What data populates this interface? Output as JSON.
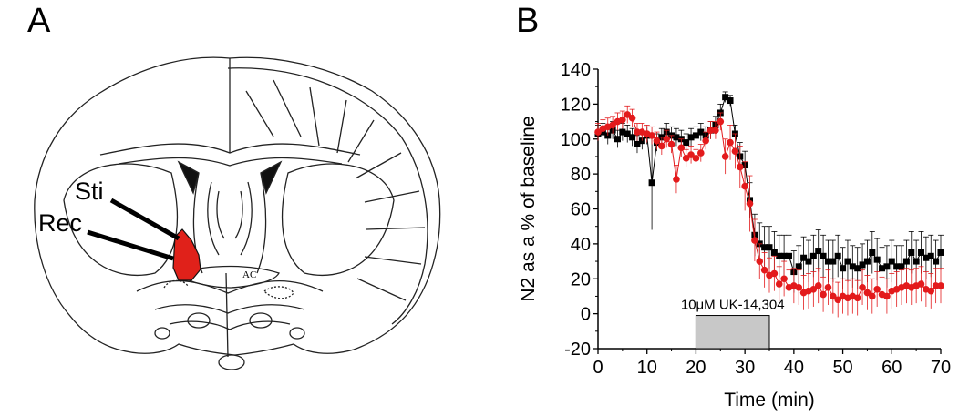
{
  "panels": {
    "a": "A",
    "b": "B"
  },
  "brain": {
    "labels": {
      "sti": "Sti",
      "rec": "Rec",
      "ac": "AC"
    },
    "region_color": "#e0211a"
  },
  "chart_data": {
    "type": "scatter",
    "xlabel": "Time (min)",
    "ylabel": "N2 as a % of baseline",
    "xlim": [
      0,
      70
    ],
    "ylim": [
      -20,
      140
    ],
    "xticks": [
      0,
      10,
      20,
      30,
      40,
      50,
      60,
      70
    ],
    "yticks": [
      -20,
      0,
      20,
      40,
      60,
      80,
      100,
      120,
      140
    ],
    "annotation": {
      "text": "10μM UK-14,304",
      "x_start": 20,
      "x_end": 35,
      "color": "#c8c8c8"
    },
    "series": [
      {
        "color": "#000000",
        "marker": "square",
        "x": [
          0,
          1,
          2,
          3,
          4,
          5,
          6,
          7,
          8,
          9,
          10,
          11,
          12,
          13,
          14,
          15,
          16,
          17,
          18,
          19,
          20,
          21,
          22,
          23,
          24,
          25,
          26,
          27,
          28,
          29,
          30,
          31,
          32,
          33,
          34,
          35,
          36,
          37,
          38,
          39,
          40,
          41,
          42,
          43,
          44,
          45,
          46,
          47,
          48,
          49,
          50,
          51,
          52,
          53,
          54,
          55,
          56,
          57,
          58,
          59,
          60,
          61,
          62,
          63,
          64,
          65,
          66,
          67,
          68,
          69,
          70
        ],
        "y": [
          103,
          104,
          102,
          105,
          100,
          104,
          103,
          101,
          97,
          99,
          102,
          75,
          98,
          101,
          104,
          102,
          101,
          100,
          98,
          101,
          102,
          104,
          102,
          105,
          108,
          115,
          124,
          122,
          103,
          90,
          85,
          65,
          45,
          40,
          38,
          38,
          35,
          33,
          33,
          33,
          24,
          27,
          32,
          30,
          33,
          36,
          33,
          30,
          30,
          33,
          26,
          30,
          27,
          26,
          28,
          30,
          35,
          31,
          26,
          27,
          30,
          27,
          27,
          30,
          35,
          30,
          35,
          32,
          33,
          30,
          35
        ],
        "err": [
          5,
          5,
          5,
          5,
          5,
          5,
          5,
          5,
          5,
          5,
          5,
          27,
          5,
          5,
          5,
          5,
          5,
          5,
          5,
          5,
          5,
          5,
          5,
          5,
          5,
          5,
          3,
          3,
          5,
          8,
          8,
          10,
          12,
          12,
          12,
          12,
          12,
          12,
          12,
          12,
          12,
          12,
          12,
          12,
          12,
          12,
          12,
          12,
          12,
          12,
          12,
          12,
          12,
          12,
          12,
          12,
          12,
          12,
          12,
          12,
          12,
          12,
          12,
          12,
          12,
          12,
          12,
          12,
          12,
          12,
          10
        ]
      },
      {
        "color": "#e31a1c",
        "marker": "circle",
        "x": [
          0,
          1,
          2,
          3,
          4,
          5,
          6,
          7,
          8,
          9,
          10,
          11,
          12,
          13,
          14,
          15,
          16,
          17,
          18,
          19,
          20,
          21,
          22,
          23,
          24,
          25,
          26,
          27,
          28,
          29,
          30,
          31,
          32,
          33,
          34,
          35,
          36,
          37,
          38,
          39,
          40,
          41,
          42,
          43,
          44,
          45,
          46,
          47,
          48,
          49,
          50,
          51,
          52,
          53,
          54,
          55,
          56,
          57,
          58,
          59,
          60,
          61,
          62,
          63,
          64,
          65,
          66,
          67,
          68,
          69,
          70
        ],
        "y": [
          104,
          106,
          107,
          108,
          110,
          111,
          114,
          112,
          104,
          104,
          103,
          102,
          99,
          96,
          100,
          97,
          77,
          95,
          89,
          91,
          89,
          92,
          99,
          105,
          105,
          110,
          90,
          98,
          93,
          84,
          73,
          63,
          42,
          30,
          25,
          22,
          23,
          17,
          20,
          15,
          16,
          15,
          12,
          13,
          14,
          16,
          11,
          15,
          10,
          8,
          10,
          9,
          10,
          9,
          15,
          12,
          10,
          14,
          11,
          10,
          13,
          14,
          15,
          16,
          15,
          16,
          17,
          14,
          13,
          16,
          16
        ],
        "err": [
          5,
          5,
          5,
          5,
          5,
          5,
          5,
          5,
          5,
          5,
          5,
          5,
          5,
          5,
          5,
          5,
          8,
          5,
          5,
          5,
          5,
          5,
          5,
          5,
          5,
          5,
          10,
          10,
          10,
          12,
          14,
          16,
          12,
          10,
          10,
          10,
          10,
          10,
          10,
          10,
          10,
          10,
          10,
          10,
          10,
          10,
          10,
          10,
          10,
          10,
          10,
          10,
          10,
          10,
          10,
          10,
          10,
          10,
          10,
          10,
          10,
          10,
          10,
          10,
          10,
          10,
          10,
          10,
          10,
          10,
          10
        ]
      }
    ]
  }
}
